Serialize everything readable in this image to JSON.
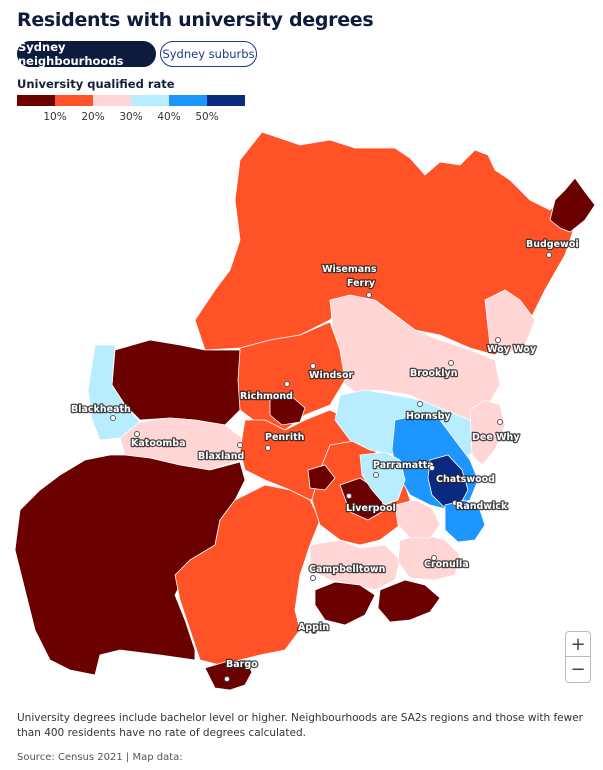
{
  "title": "Residents with university degrees",
  "toggles": {
    "active": "Sydney neighbourhoods",
    "inactive": "Sydney suburbs"
  },
  "legend": {
    "title": "University qualified rate",
    "colors": [
      "#6b0000",
      "#ff5227",
      "#ffd5d5",
      "#b8ecff",
      "#1e96ff",
      "#0a2a80"
    ],
    "ticks": [
      "10%",
      "20%",
      "30%",
      "40%",
      "50%"
    ]
  },
  "places": [
    "Budgewoi",
    "Wisemans",
    "Ferry",
    "Woy Woy",
    "Brooklyn",
    "Windsor",
    "Richmond",
    "Blackheath",
    "Katoomba",
    "Hornsby",
    "Dee Why",
    "Penrith",
    "Blaxland",
    "Parramatta",
    "Chatswood",
    "Liverpool",
    "Randwick",
    "Campbelltown",
    "Cronulla",
    "Appin",
    "Bargo"
  ],
  "zoom": {
    "in": "+",
    "out": "−"
  },
  "note": "University degrees include bachelor level or higher. Neighbourhoods are SA2s regions and those with fewer than 400 residents have no rate of degrees calculated.",
  "source": "Source: Census 2021 | Map data:"
}
